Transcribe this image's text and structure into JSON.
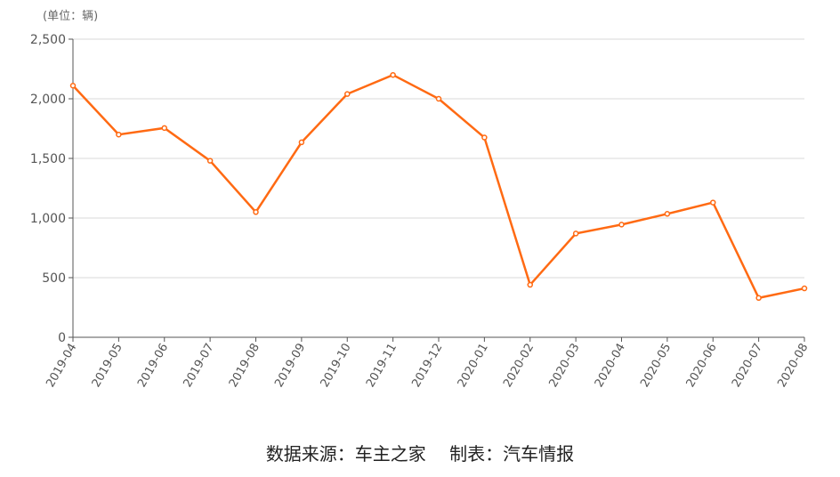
{
  "chart_data": {
    "type": "line",
    "unit_label": "(单位：辆)",
    "categories": [
      "2019-04",
      "2019-05",
      "2019-06",
      "2019-07",
      "2019-08",
      "2019-09",
      "2019-10",
      "2019-11",
      "2019-12",
      "2020-01",
      "2020-02",
      "2020-03",
      "2020-04",
      "2020-05",
      "2020-06",
      "2020-07",
      "2020-08"
    ],
    "values": [
      2110,
      1700,
      1755,
      1480,
      1050,
      1635,
      2040,
      2200,
      2000,
      1675,
      440,
      870,
      945,
      1035,
      1130,
      330,
      410
    ],
    "ylim": [
      0,
      2500
    ],
    "yticks": [
      0,
      500,
      1000,
      1500,
      2000,
      2500
    ],
    "ytick_labels": [
      "0",
      "500",
      "1,000",
      "1,500",
      "2,000",
      "2,500"
    ],
    "grid": true,
    "line_color": "#ff6a13",
    "grid_color": "#d9d9d9"
  },
  "footer": {
    "source": "数据来源：车主之家",
    "maker": "制表：汽车情报"
  }
}
